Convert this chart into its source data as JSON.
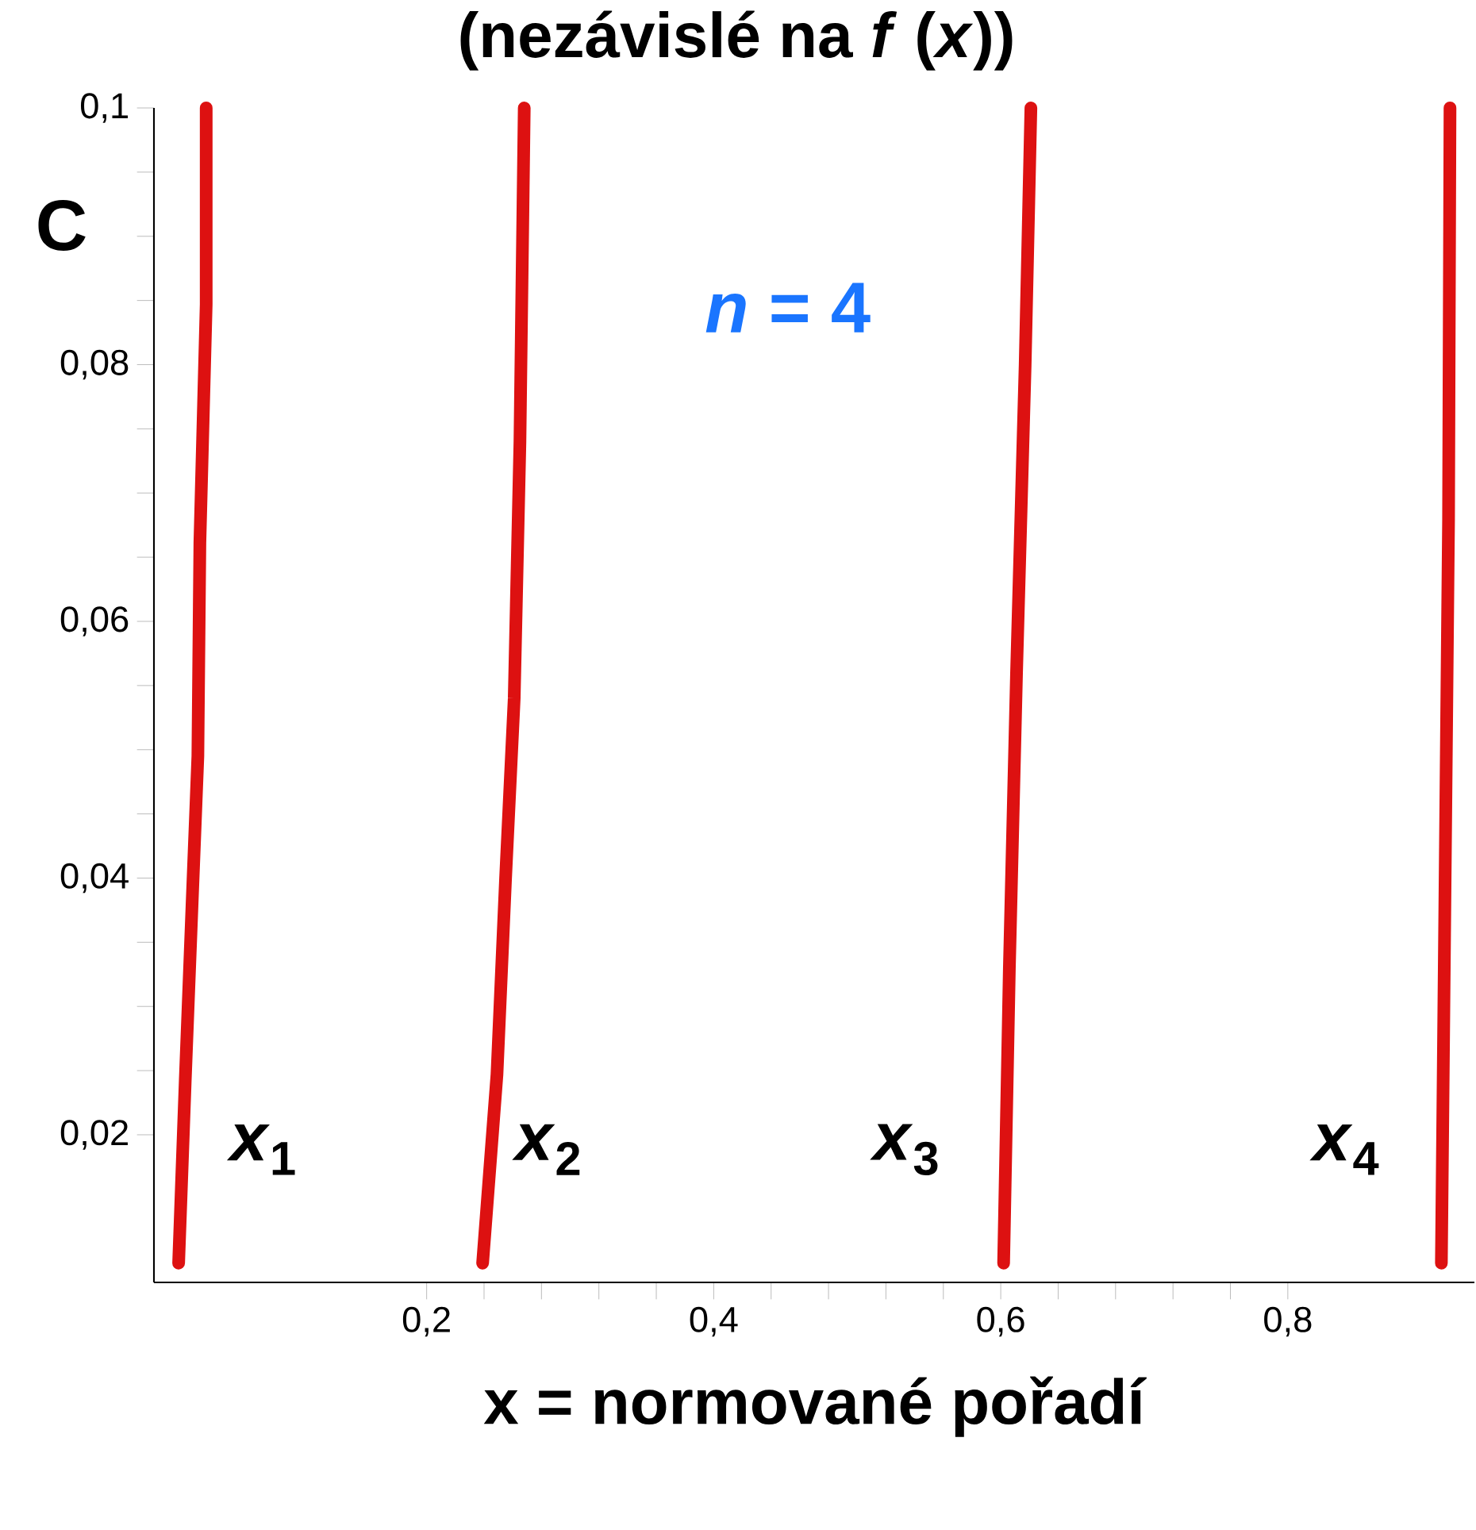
{
  "chart_data": {
    "type": "line",
    "title": "(nezávislé na *f* (*x*))",
    "xlabel": "x = normované pořadí",
    "annotations": [
      "C",
      "*n* = 4",
      "*x*$_{1}$",
      "*x*$_{2}$",
      "*x*$_{3}$",
      "*x*$_{4}$"
    ],
    "series": [
      {
        "color": "#dd1111",
        "x": [
          0.0272,
          0.0318,
          0.0365,
          0.0406,
          0.042,
          0.0464,
          0.0464
        ],
        "values": [
          0.01,
          0.0242,
          0.0378,
          0.0495,
          0.0661,
          0.0847,
          0.1
        ]
      },
      {
        "color": "#dd1111",
        "x": [
          0.239,
          0.249,
          0.255,
          0.261,
          0.265,
          0.268
        ],
        "values": [
          0.01,
          0.0247,
          0.04,
          0.054,
          0.074,
          0.1
        ]
      },
      {
        "color": "#dd1111",
        "x": [
          0.602,
          0.606,
          0.611,
          0.617,
          0.621
        ],
        "values": [
          0.01,
          0.033,
          0.056,
          0.08,
          0.1
        ]
      },
      {
        "color": "#dd1111",
        "x": [
          0.907,
          0.909,
          0.912,
          0.913
        ],
        "values": [
          0.01,
          0.033,
          0.068,
          0.1
        ]
      }
    ],
    "xlim": [
      0.01,
      0.93
    ],
    "ylim": [
      0.0085,
      0.1
    ],
    "xticks": [
      {
        "value": 0.2,
        "label": "0,2"
      },
      {
        "value": 0.4,
        "label": "0,4"
      },
      {
        "value": 0.6,
        "label": "0,6"
      },
      {
        "value": 0.8,
        "label": "0,8"
      }
    ],
    "yticks": [
      {
        "value": 0.02,
        "label": "0,02"
      },
      {
        "value": 0.04,
        "label": "0,04"
      },
      {
        "value": 0.06,
        "label": "0,06"
      },
      {
        "value": 0.08,
        "label": "0,08"
      },
      {
        "value": 0.1,
        "label": "0,1"
      }
    ],
    "grid": false,
    "marker": "none",
    "line_style": "solid"
  }
}
